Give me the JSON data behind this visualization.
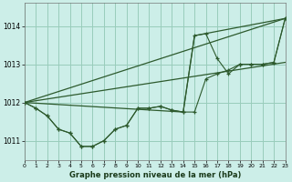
{
  "bg_color": "#cceee8",
  "grid_color": "#99ccbb",
  "line_color": "#2d5a2d",
  "marker_color": "#2d5a2d",
  "xlabel": "Graphe pression niveau de la mer (hPa)",
  "xlim": [
    0,
    23
  ],
  "ylim": [
    1010.5,
    1014.6
  ],
  "yticks": [
    1011,
    1012,
    1013,
    1014
  ],
  "xticks": [
    0,
    1,
    2,
    3,
    4,
    5,
    6,
    7,
    8,
    9,
    10,
    11,
    12,
    13,
    14,
    15,
    16,
    17,
    18,
    19,
    20,
    21,
    22,
    23
  ],
  "s1_x": [
    0,
    1,
    2,
    3,
    4,
    5,
    6,
    7,
    8,
    9,
    10,
    11,
    12,
    13,
    14,
    15,
    16,
    17,
    18,
    19,
    20,
    21,
    22,
    23
  ],
  "s1_y": [
    1012.0,
    1011.85,
    1011.65,
    1011.3,
    1011.2,
    1010.85,
    1010.85,
    1011.0,
    1011.3,
    1011.4,
    1011.85,
    1011.85,
    1011.9,
    1011.8,
    1011.75,
    1011.75,
    1012.62,
    1012.75,
    1012.85,
    1013.0,
    1013.0,
    1013.0,
    1013.05,
    1014.2
  ],
  "s2_x": [
    0,
    1,
    2,
    3,
    4,
    5,
    6,
    7,
    8,
    9,
    10,
    11,
    12,
    13,
    14,
    15,
    16,
    17,
    18,
    19,
    20,
    21,
    22,
    23
  ],
  "s2_y": [
    1012.0,
    1011.85,
    1011.65,
    1011.3,
    1011.2,
    1010.85,
    1010.85,
    1011.0,
    1011.3,
    1011.4,
    1011.85,
    1011.85,
    1011.9,
    1011.8,
    1011.75,
    1013.75,
    1013.8,
    1013.15,
    1012.75,
    1013.0,
    1013.0,
    1013.0,
    1013.05,
    1014.2
  ],
  "trend1_x": [
    0,
    23
  ],
  "trend1_y": [
    1012.0,
    1014.2
  ],
  "trend2_x": [
    0,
    14,
    15,
    23
  ],
  "trend2_y": [
    1012.0,
    1011.75,
    1013.75,
    1014.2
  ],
  "trend3_x": [
    0,
    23
  ],
  "trend3_y": [
    1012.0,
    1013.05
  ]
}
